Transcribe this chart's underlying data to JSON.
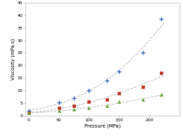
{
  "blue": {
    "x": [
      0,
      50,
      75,
      100,
      130,
      150,
      190,
      220
    ],
    "y": [
      2.0,
      5.2,
      7.0,
      10.0,
      14.0,
      17.5,
      25.0,
      38.5
    ],
    "color": "#4472C4",
    "marker": "+",
    "markersize": 4,
    "markeredgewidth": 1.0
  },
  "red": {
    "x": [
      0,
      50,
      75,
      100,
      130,
      150,
      190,
      220
    ],
    "y": [
      1.2,
      3.0,
      4.0,
      5.5,
      6.5,
      9.0,
      11.5,
      17.0
    ],
    "color": "#C0392B",
    "marker": "s",
    "markersize": 3,
    "markeredgewidth": 0.5
  },
  "green": {
    "x": [
      0,
      50,
      75,
      100,
      130,
      150,
      190,
      220
    ],
    "y": [
      1.0,
      2.0,
      2.5,
      3.0,
      4.0,
      5.5,
      6.5,
      8.3
    ],
    "color": "#70AD47",
    "marker": "^",
    "markersize": 3,
    "markeredgewidth": 0.5
  },
  "xlabel": "Pressure (MPa)",
  "ylabel": "Viscosity (mPa.s)",
  "xlim": [
    -5,
    250
  ],
  "ylim": [
    0,
    45
  ],
  "xticks": [
    0,
    50,
    100,
    150,
    200
  ],
  "yticks": [
    0,
    5,
    10,
    15,
    20,
    25,
    30,
    35,
    40,
    45
  ],
  "line_color": "#BBBBBB",
  "background": "#FFFFFF",
  "label_fontsize": 5.0,
  "tick_fontsize": 4.5,
  "spine_color": "#AAAAAA"
}
